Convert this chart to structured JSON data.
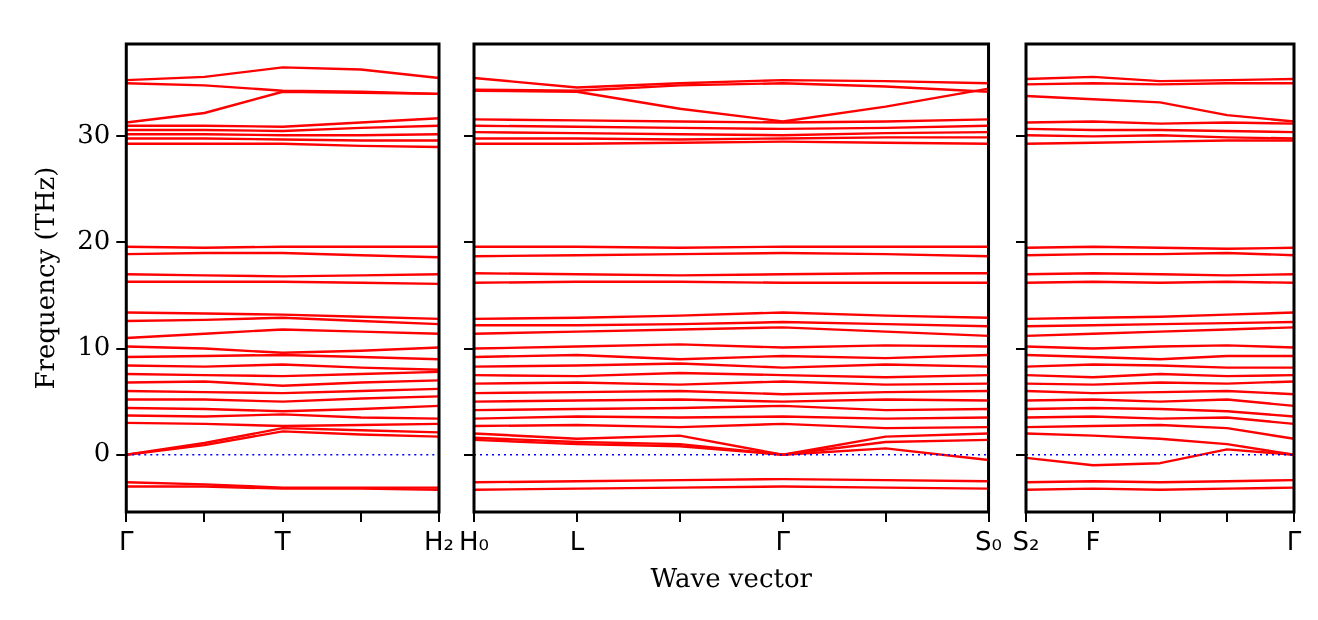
{
  "chart_data": [
    {
      "type": "line",
      "ylabel": "Frequency (THz)",
      "categories": [
        "Γ",
        null,
        "T",
        null,
        "H₂"
      ],
      "ylim": [
        -5.4,
        38.7
      ],
      "yticks": [
        0,
        10,
        20,
        30
      ],
      "marker": "none",
      "line_style": "solid",
      "legend": false,
      "grid": false,
      "ref_lines": [
        {
          "axis": "y",
          "value": 0,
          "color": "#0000ff",
          "line_style": "dotted"
        }
      ],
      "series": [
        {
          "color": "#ff0000",
          "values": [
            35.3,
            35.6,
            36.5,
            36.3,
            35.5
          ]
        },
        {
          "color": "#ff0000",
          "values": [
            35.0,
            34.8,
            34.3,
            34.2,
            34.0
          ]
        },
        {
          "color": "#ff0000",
          "values": [
            31.3,
            32.2,
            34.2,
            34.1,
            34.0
          ]
        },
        {
          "color": "#ff0000",
          "values": [
            31.0,
            31.0,
            30.9,
            31.3,
            31.7
          ]
        },
        {
          "color": "#ff0000",
          "values": [
            30.6,
            30.6,
            30.5,
            30.8,
            31.0
          ]
        },
        {
          "color": "#ff0000",
          "values": [
            30.2,
            30.2,
            30.1,
            30.1,
            30.2
          ]
        },
        {
          "color": "#ff0000",
          "values": [
            29.8,
            29.8,
            29.7,
            29.6,
            29.6
          ]
        },
        {
          "color": "#ff0000",
          "values": [
            29.3,
            29.3,
            29.3,
            29.1,
            29.0
          ]
        },
        {
          "color": "#ff0000",
          "values": [
            19.6,
            19.5,
            19.6,
            19.6,
            19.6
          ]
        },
        {
          "color": "#ff0000",
          "values": [
            18.9,
            19.0,
            19.0,
            18.8,
            18.6
          ]
        },
        {
          "color": "#ff0000",
          "values": [
            17.0,
            16.9,
            16.8,
            16.9,
            17.0
          ]
        },
        {
          "color": "#ff0000",
          "values": [
            16.3,
            16.3,
            16.3,
            16.2,
            16.1
          ]
        },
        {
          "color": "#ff0000",
          "values": [
            13.4,
            13.3,
            13.2,
            13.0,
            12.8
          ]
        },
        {
          "color": "#ff0000",
          "values": [
            12.6,
            12.7,
            12.9,
            12.6,
            12.3
          ]
        },
        {
          "color": "#ff0000",
          "values": [
            11.0,
            11.4,
            11.8,
            11.6,
            11.4
          ]
        },
        {
          "color": "#ff0000",
          "values": [
            10.2,
            10.0,
            9.6,
            9.8,
            10.1
          ]
        },
        {
          "color": "#ff0000",
          "values": [
            9.2,
            9.3,
            9.4,
            9.2,
            9.0
          ]
        },
        {
          "color": "#ff0000",
          "values": [
            8.4,
            8.3,
            8.5,
            8.2,
            8.0
          ]
        },
        {
          "color": "#ff0000",
          "values": [
            7.6,
            7.5,
            7.4,
            7.6,
            7.8
          ]
        },
        {
          "color": "#ff0000",
          "values": [
            6.8,
            6.9,
            6.5,
            6.8,
            7.0
          ]
        },
        {
          "color": "#ff0000",
          "values": [
            6.0,
            5.9,
            5.8,
            6.0,
            6.2
          ]
        },
        {
          "color": "#ff0000",
          "values": [
            5.2,
            5.2,
            5.0,
            5.3,
            5.5
          ]
        },
        {
          "color": "#ff0000",
          "values": [
            4.4,
            4.3,
            4.1,
            4.3,
            4.6
          ]
        },
        {
          "color": "#ff0000",
          "values": [
            3.7,
            3.6,
            3.8,
            3.5,
            3.4
          ]
        },
        {
          "color": "#ff0000",
          "values": [
            3.0,
            2.9,
            2.7,
            2.8,
            2.9
          ]
        },
        {
          "color": "#ff0000",
          "values": [
            0,
            1.1,
            2.5,
            2.3,
            2.1
          ]
        },
        {
          "color": "#ff0000",
          "values": [
            0,
            0.9,
            2.2,
            1.9,
            1.7
          ]
        },
        {
          "color": "#ff0000",
          "values": [
            -2.6,
            -2.8,
            -3.1,
            -3.1,
            -3.1
          ]
        },
        {
          "color": "#ff0000",
          "values": [
            -3.0,
            -3.0,
            -3.2,
            -3.2,
            -3.3
          ]
        }
      ]
    },
    {
      "type": "line",
      "xlabel": "Wave vector",
      "categories": [
        "H₀",
        "L",
        null,
        "Γ",
        null,
        "S₀"
      ],
      "ylim": [
        -5.4,
        38.7
      ],
      "yticks": [
        0,
        10,
        20,
        30
      ],
      "tick_labels": "x",
      "marker": "none",
      "line_style": "solid",
      "legend": false,
      "grid": false,
      "ref_lines": [
        {
          "axis": "y",
          "value": 0,
          "color": "#0000ff",
          "line_style": "dotted"
        }
      ],
      "series": [
        {
          "color": "#ff0000",
          "values": [
            35.5,
            34.6,
            35.0,
            35.3,
            35.2,
            35.0
          ]
        },
        {
          "color": "#ff0000",
          "values": [
            34.4,
            34.3,
            34.8,
            35.0,
            34.7,
            34.2
          ]
        },
        {
          "color": "#ff0000",
          "values": [
            34.3,
            34.2,
            32.6,
            31.4,
            32.8,
            34.5
          ]
        },
        {
          "color": "#ff0000",
          "values": [
            31.6,
            31.5,
            31.4,
            31.3,
            31.4,
            31.6
          ]
        },
        {
          "color": "#ff0000",
          "values": [
            31.0,
            30.9,
            30.8,
            30.7,
            30.8,
            31.0
          ]
        },
        {
          "color": "#ff0000",
          "values": [
            30.4,
            30.3,
            30.2,
            30.1,
            30.3,
            30.4
          ]
        },
        {
          "color": "#ff0000",
          "values": [
            29.8,
            29.8,
            29.7,
            29.8,
            29.9,
            29.9
          ]
        },
        {
          "color": "#ff0000",
          "values": [
            29.3,
            29.3,
            29.4,
            29.5,
            29.4,
            29.3
          ]
        },
        {
          "color": "#ff0000",
          "values": [
            19.6,
            19.6,
            19.5,
            19.6,
            19.6,
            19.6
          ]
        },
        {
          "color": "#ff0000",
          "values": [
            18.7,
            18.8,
            18.9,
            19.0,
            18.9,
            18.7
          ]
        },
        {
          "color": "#ff0000",
          "values": [
            17.1,
            17.0,
            16.9,
            17.0,
            17.1,
            17.1
          ]
        },
        {
          "color": "#ff0000",
          "values": [
            16.2,
            16.3,
            16.3,
            16.2,
            16.2,
            16.2
          ]
        },
        {
          "color": "#ff0000",
          "values": [
            12.8,
            12.9,
            13.1,
            13.4,
            13.1,
            12.9
          ]
        },
        {
          "color": "#ff0000",
          "values": [
            12.2,
            12.2,
            12.3,
            12.5,
            12.3,
            12.1
          ]
        },
        {
          "color": "#ff0000",
          "values": [
            11.4,
            11.6,
            11.8,
            12.0,
            11.6,
            11.2
          ]
        },
        {
          "color": "#ff0000",
          "values": [
            10.0,
            10.2,
            10.4,
            10.1,
            10.3,
            10.2
          ]
        },
        {
          "color": "#ff0000",
          "values": [
            9.2,
            9.4,
            9.0,
            9.3,
            9.1,
            9.4
          ]
        },
        {
          "color": "#ff0000",
          "values": [
            8.3,
            8.4,
            8.6,
            8.2,
            8.5,
            8.3
          ]
        },
        {
          "color": "#ff0000",
          "values": [
            7.5,
            7.4,
            7.7,
            7.5,
            7.3,
            7.5
          ]
        },
        {
          "color": "#ff0000",
          "values": [
            6.7,
            6.8,
            6.6,
            6.9,
            6.6,
            6.7
          ]
        },
        {
          "color": "#ff0000",
          "values": [
            5.8,
            5.9,
            6.0,
            5.7,
            5.9,
            6.0
          ]
        },
        {
          "color": "#ff0000",
          "values": [
            5.0,
            5.1,
            5.2,
            5.0,
            5.2,
            5.1
          ]
        },
        {
          "color": "#ff0000",
          "values": [
            4.2,
            4.3,
            4.4,
            4.6,
            4.2,
            4.3
          ]
        },
        {
          "color": "#ff0000",
          "values": [
            3.4,
            3.6,
            3.5,
            3.6,
            3.4,
            3.5
          ]
        },
        {
          "color": "#ff0000",
          "values": [
            2.7,
            2.8,
            2.6,
            2.9,
            2.5,
            2.6
          ]
        },
        {
          "color": "#ff0000",
          "values": [
            2.0,
            1.5,
            1.8,
            0,
            1.7,
            2.0
          ]
        },
        {
          "color": "#ff0000",
          "values": [
            1.6,
            1.2,
            1.0,
            0,
            1.2,
            1.4
          ]
        },
        {
          "color": "#ff0000",
          "values": [
            1.4,
            1.0,
            0.8,
            0,
            0.6,
            -0.5
          ]
        },
        {
          "color": "#ff0000",
          "values": [
            -2.6,
            -2.5,
            -2.4,
            -2.3,
            -2.4,
            -2.5
          ]
        },
        {
          "color": "#ff0000",
          "values": [
            -3.3,
            -3.2,
            -3.1,
            -3.0,
            -3.1,
            -3.2
          ]
        }
      ]
    },
    {
      "type": "line",
      "categories": [
        "S₂",
        "F",
        null,
        null,
        "Γ"
      ],
      "ylim": [
        -5.4,
        38.7
      ],
      "yticks": [
        0,
        10,
        20,
        30
      ],
      "tick_labels": "x",
      "marker": "none",
      "line_style": "solid",
      "legend": false,
      "grid": false,
      "ref_lines": [
        {
          "axis": "y",
          "value": 0,
          "color": "#0000ff",
          "line_style": "dotted"
        }
      ],
      "series": [
        {
          "color": "#ff0000",
          "values": [
            35.4,
            35.6,
            35.2,
            35.3,
            35.4
          ]
        },
        {
          "color": "#ff0000",
          "values": [
            34.9,
            35.0,
            34.9,
            35.0,
            35.0
          ]
        },
        {
          "color": "#ff0000",
          "values": [
            33.8,
            33.5,
            33.2,
            32.0,
            31.4
          ]
        },
        {
          "color": "#ff0000",
          "values": [
            31.3,
            31.4,
            31.2,
            31.3,
            31.2
          ]
        },
        {
          "color": "#ff0000",
          "values": [
            30.7,
            30.6,
            30.6,
            30.5,
            30.4
          ]
        },
        {
          "color": "#ff0000",
          "values": [
            30.1,
            30.0,
            30.1,
            29.9,
            29.8
          ]
        },
        {
          "color": "#ff0000",
          "values": [
            29.3,
            29.4,
            29.5,
            29.6,
            29.6
          ]
        },
        {
          "color": "#ff0000",
          "values": [
            19.5,
            19.6,
            19.5,
            19.4,
            19.5
          ]
        },
        {
          "color": "#ff0000",
          "values": [
            18.8,
            18.9,
            18.9,
            19.0,
            18.8
          ]
        },
        {
          "color": "#ff0000",
          "values": [
            17.0,
            17.1,
            17.0,
            16.9,
            17.0
          ]
        },
        {
          "color": "#ff0000",
          "values": [
            16.2,
            16.3,
            16.2,
            16.3,
            16.2
          ]
        },
        {
          "color": "#ff0000",
          "values": [
            12.8,
            12.9,
            13.0,
            13.2,
            13.4
          ]
        },
        {
          "color": "#ff0000",
          "values": [
            12.1,
            12.2,
            12.3,
            12.4,
            12.5
          ]
        },
        {
          "color": "#ff0000",
          "values": [
            11.2,
            11.4,
            11.6,
            11.8,
            12.0
          ]
        },
        {
          "color": "#ff0000",
          "values": [
            10.2,
            10.0,
            10.2,
            10.3,
            10.1
          ]
        },
        {
          "color": "#ff0000",
          "values": [
            9.4,
            9.2,
            9.0,
            9.3,
            9.3
          ]
        },
        {
          "color": "#ff0000",
          "values": [
            8.3,
            8.5,
            8.4,
            8.2,
            8.2
          ]
        },
        {
          "color": "#ff0000",
          "values": [
            7.5,
            7.3,
            7.6,
            7.4,
            7.5
          ]
        },
        {
          "color": "#ff0000",
          "values": [
            6.7,
            6.6,
            6.8,
            6.7,
            6.9
          ]
        },
        {
          "color": "#ff0000",
          "values": [
            6.0,
            5.8,
            5.9,
            6.0,
            5.7
          ]
        },
        {
          "color": "#ff0000",
          "values": [
            5.1,
            5.2,
            5.0,
            5.2,
            4.6
          ]
        },
        {
          "color": "#ff0000",
          "values": [
            4.3,
            4.4,
            4.3,
            4.1,
            3.6
          ]
        },
        {
          "color": "#ff0000",
          "values": [
            3.5,
            3.6,
            3.4,
            3.5,
            2.9
          ]
        },
        {
          "color": "#ff0000",
          "values": [
            2.6,
            2.7,
            2.8,
            2.5,
            1.5
          ]
        },
        {
          "color": "#ff0000",
          "values": [
            2.0,
            1.8,
            1.5,
            1.0,
            0
          ]
        },
        {
          "color": "#ff0000",
          "values": [
            -0.3,
            -1.0,
            -0.8,
            0.5,
            0
          ]
        },
        {
          "color": "#ff0000",
          "values": [
            -2.6,
            -2.5,
            -2.6,
            -2.5,
            -2.4
          ]
        },
        {
          "color": "#ff0000",
          "values": [
            -3.3,
            -3.2,
            -3.3,
            -3.2,
            -3.1
          ]
        }
      ]
    }
  ]
}
